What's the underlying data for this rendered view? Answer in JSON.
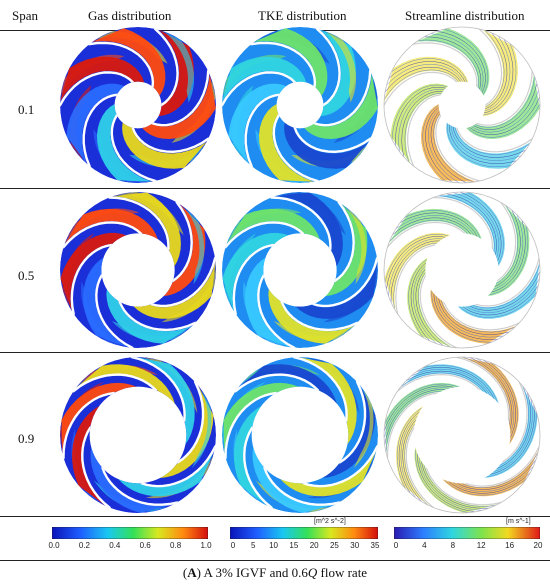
{
  "headers": {
    "span": "Span",
    "gas": "Gas distribution",
    "tke": "TKE distribution",
    "streamline": "Streamline distribution"
  },
  "rows": [
    {
      "span": "0.1",
      "hub_fraction": 0.3
    },
    {
      "span": "0.5",
      "hub_fraction": 0.47
    },
    {
      "span": "0.9",
      "hub_fraction": 0.62
    }
  ],
  "colorbars": [
    {
      "name": "gas",
      "unit": "",
      "ticks": [
        "0.0",
        "0.2",
        "0.4",
        "0.6",
        "0.8",
        "1.0"
      ]
    },
    {
      "name": "tke",
      "unit": "[m^2 s^-2]",
      "ticks": [
        "0",
        "5",
        "10",
        "15",
        "20",
        "25",
        "30",
        "35"
      ]
    },
    {
      "name": "velocity",
      "unit": "[m s^-1]",
      "ticks": [
        "0",
        "4",
        "8",
        "12",
        "16",
        "20"
      ]
    }
  ],
  "caption": {
    "label": "A",
    "text_before": " A 3% IGVF and 0.6",
    "italic": "Q",
    "text_after": " flow rate"
  }
}
